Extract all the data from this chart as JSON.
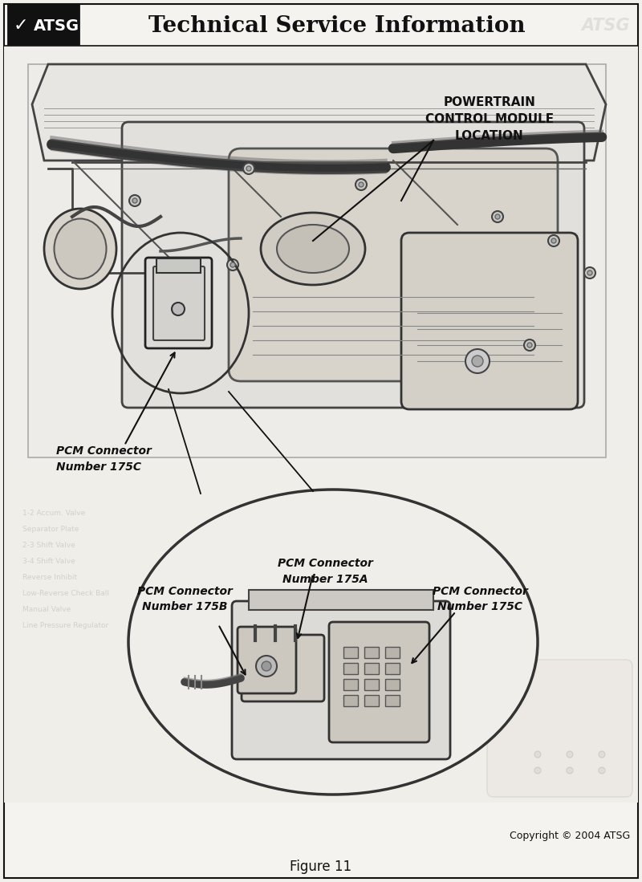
{
  "title": "Technical Service Information",
  "atsg_label": "ATSG",
  "checkmark": "✓",
  "powertrain_label": "POWERTRAIN\nCONTROL MODULE\nLOCATION",
  "copyright": "Copyright © 2004 ATSG",
  "figure_label": "Figure 11",
  "label_175C_top": "PCM Connector\nNumber 175C",
  "label_175A": "PCM Connector\nNumber 175A",
  "label_175B": "PCM Connector\nNumber 175B",
  "label_175C_circle": "PCM Connector\nNumber 175C",
  "bg_color": "#f2f0ec",
  "page_bg": "#f5f3ef",
  "header_line_color": "#555555",
  "black": "#111111",
  "dark_gray": "#444444",
  "mid_gray": "#888888",
  "light_gray": "#cccccc",
  "watermark_color": "#c8c4be",
  "engine_area_color": "#ededea",
  "lower_area_color": "#f0eeea"
}
